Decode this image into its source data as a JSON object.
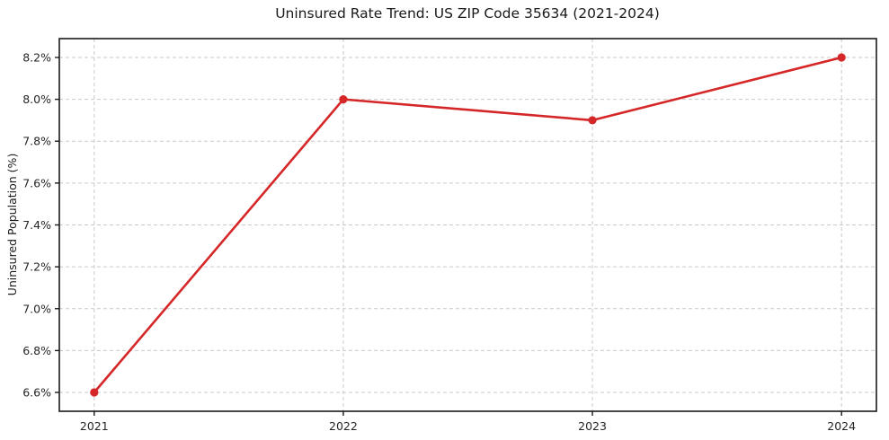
{
  "chart_data": {
    "type": "line",
    "title": "Uninsured Rate Trend: US ZIP Code 35634 (2021-2024)",
    "xlabel": "",
    "ylabel": "Uninsured Population (%)",
    "x": [
      2021,
      2022,
      2023,
      2024
    ],
    "series": [
      {
        "values": [
          6.6,
          8.0,
          7.9,
          8.2
        ]
      }
    ],
    "xticks": [
      2021,
      2022,
      2023,
      2024
    ],
    "xtick_labels": [
      "2021",
      "2022",
      "2023",
      "2024"
    ],
    "yticks": [
      6.6,
      6.8,
      7.0,
      7.2,
      7.4,
      7.6,
      7.8,
      8.0,
      8.2
    ],
    "ytick_labels": [
      "6.6%",
      "6.8%",
      "7.0%",
      "7.2%",
      "7.4%",
      "7.6%",
      "7.8%",
      "8.0%",
      "8.2%"
    ],
    "xlim": [
      2020.86,
      2024.14
    ],
    "ylim": [
      6.51,
      8.29
    ],
    "grid": true,
    "grid_style": "dashed",
    "legend": false,
    "marker": "circle",
    "colors": {
      "line": "#d62728",
      "marker": "#d62728",
      "grid": "#c9c9c9",
      "spine": "#1a1a1a",
      "text": "#262626",
      "background": "#ffffff"
    }
  }
}
